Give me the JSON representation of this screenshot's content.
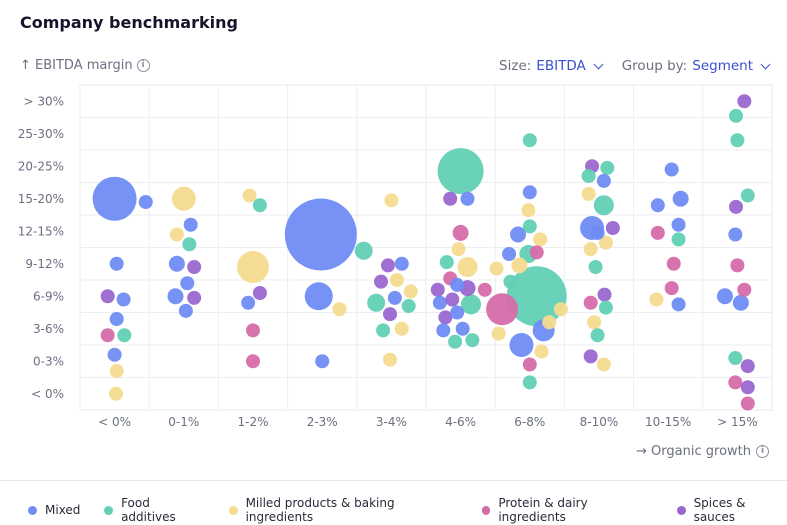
{
  "title": "Company benchmarking",
  "y_axis_label": "↑ EBITDA margin",
  "x_axis_label": "→ Organic growth",
  "info_glyph": "i",
  "size_control": {
    "label": "Size:",
    "value": "EBITDA"
  },
  "group_control": {
    "label": "Group by:",
    "value": "Segment"
  },
  "colors": {
    "Mixed": "#6f8cf3",
    "Food additives": "#62d0b5",
    "Milled products & baking ingredients": "#f5db8f",
    "Protein & dairy ingredients": "#d56ba9",
    "Spices & sauces": "#9a67cf"
  },
  "legend": [
    {
      "label": "Mixed",
      "color": "#6f8cf3"
    },
    {
      "label": "Food additives",
      "color": "#62d0b5"
    },
    {
      "label": "Milled products & baking ingredients",
      "color": "#f5db8f"
    },
    {
      "label": "Protein & dairy ingredients",
      "color": "#d56ba9"
    },
    {
      "label": "Spices & sauces",
      "color": "#9a67cf"
    }
  ],
  "chart_data": {
    "type": "scatter",
    "title": "Company benchmarking",
    "xlabel": "Organic growth",
    "ylabel": "EBITDA margin",
    "size_by": "EBITDA",
    "group_by": "Segment",
    "x_categories": [
      "< 0%",
      "0-1%",
      "1-2%",
      "2-3%",
      "3-4%",
      "4-6%",
      "6-8%",
      "8-10%",
      "10-15%",
      "> 15%"
    ],
    "y_categories": [
      "< 0%",
      "0-3%",
      "3-6%",
      "6-9%",
      "9-12%",
      "12-15%",
      "15-20%",
      "20-25%",
      "25-30%",
      "> 30%"
    ],
    "points": [
      {
        "x": 0.0,
        "y": 6.0,
        "size": 22,
        "group": "Mixed"
      },
      {
        "x": 0.45,
        "y": 5.9,
        "size": 7,
        "group": "Mixed"
      },
      {
        "x": 0.03,
        "y": 4.0,
        "size": 7,
        "group": "Mixed"
      },
      {
        "x": 0.13,
        "y": 2.9,
        "size": 7,
        "group": "Mixed"
      },
      {
        "x": -0.1,
        "y": 3.0,
        "size": 7,
        "group": "Spices & sauces"
      },
      {
        "x": 0.03,
        "y": 2.3,
        "size": 7,
        "group": "Mixed"
      },
      {
        "x": -0.1,
        "y": 1.8,
        "size": 7,
        "group": "Protein & dairy ingredients"
      },
      {
        "x": 0.14,
        "y": 1.8,
        "size": 7,
        "group": "Food additives"
      },
      {
        "x": 0.0,
        "y": 1.2,
        "size": 7,
        "group": "Mixed"
      },
      {
        "x": 0.03,
        "y": 0.7,
        "size": 7,
        "group": "Milled products & baking ingredients"
      },
      {
        "x": 0.02,
        "y": 0.0,
        "size": 7,
        "group": "Milled products & baking ingredients"
      },
      {
        "x": 1.0,
        "y": 6.0,
        "size": 12,
        "group": "Milled products & baking ingredients"
      },
      {
        "x": 1.1,
        "y": 5.2,
        "size": 7,
        "group": "Mixed"
      },
      {
        "x": 0.9,
        "y": 4.9,
        "size": 7,
        "group": "Milled products & baking ingredients"
      },
      {
        "x": 1.08,
        "y": 4.6,
        "size": 7,
        "group": "Food additives"
      },
      {
        "x": 0.9,
        "y": 4.0,
        "size": 8,
        "group": "Mixed"
      },
      {
        "x": 1.15,
        "y": 3.9,
        "size": 7,
        "group": "Spices & sauces"
      },
      {
        "x": 1.05,
        "y": 3.4,
        "size": 7,
        "group": "Mixed"
      },
      {
        "x": 0.88,
        "y": 3.0,
        "size": 8,
        "group": "Mixed"
      },
      {
        "x": 1.15,
        "y": 2.95,
        "size": 7,
        "group": "Spices & sauces"
      },
      {
        "x": 1.03,
        "y": 2.55,
        "size": 7,
        "group": "Mixed"
      },
      {
        "x": 1.95,
        "y": 6.1,
        "size": 7,
        "group": "Milled products & baking ingredients"
      },
      {
        "x": 2.1,
        "y": 5.8,
        "size": 7,
        "group": "Food additives"
      },
      {
        "x": 2.0,
        "y": 3.9,
        "size": 16,
        "group": "Milled products & baking ingredients"
      },
      {
        "x": 2.1,
        "y": 3.1,
        "size": 7,
        "group": "Spices & sauces"
      },
      {
        "x": 1.93,
        "y": 2.8,
        "size": 7,
        "group": "Mixed"
      },
      {
        "x": 2.0,
        "y": 1.95,
        "size": 7,
        "group": "Protein & dairy ingredients"
      },
      {
        "x": 2.0,
        "y": 1.0,
        "size": 7,
        "group": "Protein & dairy ingredients"
      },
      {
        "x": 2.98,
        "y": 4.9,
        "size": 36,
        "group": "Mixed"
      },
      {
        "x": 3.6,
        "y": 4.4,
        "size": 9,
        "group": "Food additives"
      },
      {
        "x": 2.95,
        "y": 3.0,
        "size": 14,
        "group": "Mixed"
      },
      {
        "x": 3.25,
        "y": 2.6,
        "size": 7,
        "group": "Milled products & baking ingredients"
      },
      {
        "x": 3.0,
        "y": 1.0,
        "size": 7,
        "group": "Mixed"
      },
      {
        "x": 4.0,
        "y": 5.95,
        "size": 7,
        "group": "Milled products & baking ingredients"
      },
      {
        "x": 3.95,
        "y": 3.95,
        "size": 7,
        "group": "Spices & sauces"
      },
      {
        "x": 4.15,
        "y": 4.0,
        "size": 7,
        "group": "Mixed"
      },
      {
        "x": 3.85,
        "y": 3.45,
        "size": 7,
        "group": "Spices & sauces"
      },
      {
        "x": 4.08,
        "y": 3.5,
        "size": 7,
        "group": "Milled products & baking ingredients"
      },
      {
        "x": 4.28,
        "y": 3.15,
        "size": 7,
        "group": "Milled products & baking ingredients"
      },
      {
        "x": 3.78,
        "y": 2.8,
        "size": 9,
        "group": "Food additives"
      },
      {
        "x": 4.05,
        "y": 2.95,
        "size": 7,
        "group": "Mixed"
      },
      {
        "x": 4.25,
        "y": 2.7,
        "size": 7,
        "group": "Food additives"
      },
      {
        "x": 3.98,
        "y": 2.45,
        "size": 7,
        "group": "Spices & sauces"
      },
      {
        "x": 3.88,
        "y": 1.95,
        "size": 7,
        "group": "Food additives"
      },
      {
        "x": 4.15,
        "y": 2.0,
        "size": 7,
        "group": "Milled products & baking ingredients"
      },
      {
        "x": 3.98,
        "y": 1.05,
        "size": 7,
        "group": "Milled products & baking ingredients"
      },
      {
        "x": 5.0,
        "y": 6.85,
        "size": 23,
        "group": "Food additives"
      },
      {
        "x": 4.85,
        "y": 6.0,
        "size": 7,
        "group": "Spices & sauces"
      },
      {
        "x": 5.1,
        "y": 6.0,
        "size": 7,
        "group": "Mixed"
      },
      {
        "x": 5.0,
        "y": 4.95,
        "size": 8,
        "group": "Protein & dairy ingredients"
      },
      {
        "x": 4.97,
        "y": 4.45,
        "size": 7,
        "group": "Milled products & baking ingredients"
      },
      {
        "x": 4.8,
        "y": 4.05,
        "size": 7,
        "group": "Food additives"
      },
      {
        "x": 5.1,
        "y": 3.9,
        "size": 10,
        "group": "Milled products & baking ingredients"
      },
      {
        "x": 4.85,
        "y": 3.55,
        "size": 7,
        "group": "Protein & dairy ingredients"
      },
      {
        "x": 4.67,
        "y": 3.2,
        "size": 7,
        "group": "Spices & sauces"
      },
      {
        "x": 4.95,
        "y": 3.35,
        "size": 7,
        "group": "Mixed"
      },
      {
        "x": 5.1,
        "y": 3.25,
        "size": 8,
        "group": "Spices & sauces"
      },
      {
        "x": 4.7,
        "y": 2.8,
        "size": 7,
        "group": "Mixed"
      },
      {
        "x": 4.88,
        "y": 2.9,
        "size": 7,
        "group": "Spices & sauces"
      },
      {
        "x": 5.15,
        "y": 2.75,
        "size": 10,
        "group": "Food additives"
      },
      {
        "x": 4.78,
        "y": 2.35,
        "size": 7,
        "group": "Spices & sauces"
      },
      {
        "x": 4.95,
        "y": 2.5,
        "size": 7,
        "group": "Mixed"
      },
      {
        "x": 4.75,
        "y": 1.95,
        "size": 7,
        "group": "Mixed"
      },
      {
        "x": 5.03,
        "y": 2.0,
        "size": 7,
        "group": "Mixed"
      },
      {
        "x": 4.92,
        "y": 1.6,
        "size": 7,
        "group": "Food additives"
      },
      {
        "x": 5.17,
        "y": 1.65,
        "size": 7,
        "group": "Food additives"
      },
      {
        "x": 5.35,
        "y": 3.2,
        "size": 7,
        "group": "Protein & dairy ingredients"
      },
      {
        "x": 5.52,
        "y": 3.85,
        "size": 7,
        "group": "Milled products & baking ingredients"
      },
      {
        "x": 5.6,
        "y": 2.6,
        "size": 16,
        "group": "Protein & dairy ingredients"
      },
      {
        "x": 5.72,
        "y": 3.45,
        "size": 7,
        "group": "Food additives"
      },
      {
        "x": 5.55,
        "y": 1.85,
        "size": 7,
        "group": "Milled products & baking ingredients"
      },
      {
        "x": 5.83,
        "y": 4.9,
        "size": 8,
        "group": "Mixed"
      },
      {
        "x": 5.7,
        "y": 4.3,
        "size": 7,
        "group": "Mixed"
      },
      {
        "x": 5.85,
        "y": 3.95,
        "size": 8,
        "group": "Milled products & baking ingredients"
      },
      {
        "x": 5.88,
        "y": 1.5,
        "size": 12,
        "group": "Mixed"
      },
      {
        "x": 6.0,
        "y": 7.8,
        "size": 7,
        "group": "Food additives"
      },
      {
        "x": 6.0,
        "y": 6.2,
        "size": 7,
        "group": "Mixed"
      },
      {
        "x": 5.98,
        "y": 5.65,
        "size": 7,
        "group": "Milled products & baking ingredients"
      },
      {
        "x": 6.0,
        "y": 5.15,
        "size": 7,
        "group": "Food additives"
      },
      {
        "x": 6.15,
        "y": 4.75,
        "size": 7,
        "group": "Milled products & baking ingredients"
      },
      {
        "x": 6.1,
        "y": 4.35,
        "size": 7,
        "group": "Protein & dairy ingredients"
      },
      {
        "x": 5.98,
        "y": 4.3,
        "size": 9,
        "group": "Food additives"
      },
      {
        "x": 6.1,
        "y": 3.0,
        "size": 30,
        "group": "Food additives"
      },
      {
        "x": 6.2,
        "y": 1.95,
        "size": 11,
        "group": "Mixed"
      },
      {
        "x": 6.17,
        "y": 1.3,
        "size": 7,
        "group": "Milled products & baking ingredients"
      },
      {
        "x": 6.0,
        "y": 0.9,
        "size": 7,
        "group": "Protein & dairy ingredients"
      },
      {
        "x": 6.0,
        "y": 0.35,
        "size": 7,
        "group": "Food additives"
      },
      {
        "x": 6.45,
        "y": 2.6,
        "size": 7,
        "group": "Milled products & baking ingredients"
      },
      {
        "x": 6.28,
        "y": 2.2,
        "size": 7,
        "group": "Milled products & baking ingredients"
      },
      {
        "x": 6.9,
        "y": 7.0,
        "size": 7,
        "group": "Spices & sauces"
      },
      {
        "x": 7.12,
        "y": 6.95,
        "size": 7,
        "group": "Food additives"
      },
      {
        "x": 6.85,
        "y": 6.7,
        "size": 7,
        "group": "Food additives"
      },
      {
        "x": 7.07,
        "y": 6.55,
        "size": 7,
        "group": "Mixed"
      },
      {
        "x": 6.85,
        "y": 6.15,
        "size": 7,
        "group": "Milled products & baking ingredients"
      },
      {
        "x": 7.07,
        "y": 5.8,
        "size": 10,
        "group": "Food additives"
      },
      {
        "x": 6.9,
        "y": 5.1,
        "size": 12,
        "group": "Mixed"
      },
      {
        "x": 7.2,
        "y": 5.1,
        "size": 7,
        "group": "Spices & sauces"
      },
      {
        "x": 6.88,
        "y": 4.45,
        "size": 7,
        "group": "Milled products & baking ingredients"
      },
      {
        "x": 7.1,
        "y": 4.65,
        "size": 7,
        "group": "Milled products & baking ingredients"
      },
      {
        "x": 6.98,
        "y": 4.95,
        "size": 7,
        "group": "Mixed"
      },
      {
        "x": 6.95,
        "y": 3.9,
        "size": 7,
        "group": "Food additives"
      },
      {
        "x": 7.08,
        "y": 3.05,
        "size": 7,
        "group": "Spices & sauces"
      },
      {
        "x": 6.88,
        "y": 2.8,
        "size": 7,
        "group": "Protein & dairy ingredients"
      },
      {
        "x": 7.1,
        "y": 2.65,
        "size": 7,
        "group": "Food additives"
      },
      {
        "x": 6.93,
        "y": 2.2,
        "size": 7,
        "group": "Milled products & baking ingredients"
      },
      {
        "x": 6.98,
        "y": 1.8,
        "size": 7,
        "group": "Food additives"
      },
      {
        "x": 6.88,
        "y": 1.15,
        "size": 7,
        "group": "Spices & sauces"
      },
      {
        "x": 7.07,
        "y": 0.9,
        "size": 7,
        "group": "Milled products & baking ingredients"
      },
      {
        "x": 8.05,
        "y": 6.9,
        "size": 7,
        "group": "Mixed"
      },
      {
        "x": 8.18,
        "y": 6.0,
        "size": 8,
        "group": "Mixed"
      },
      {
        "x": 7.85,
        "y": 5.8,
        "size": 7,
        "group": "Mixed"
      },
      {
        "x": 8.15,
        "y": 5.2,
        "size": 7,
        "group": "Mixed"
      },
      {
        "x": 7.85,
        "y": 4.95,
        "size": 7,
        "group": "Protein & dairy ingredients"
      },
      {
        "x": 8.15,
        "y": 4.75,
        "size": 7,
        "group": "Food additives"
      },
      {
        "x": 8.08,
        "y": 4.0,
        "size": 7,
        "group": "Protein & dairy ingredients"
      },
      {
        "x": 8.05,
        "y": 3.25,
        "size": 7,
        "group": "Protein & dairy ingredients"
      },
      {
        "x": 7.83,
        "y": 2.9,
        "size": 7,
        "group": "Milled products & baking ingredients"
      },
      {
        "x": 8.15,
        "y": 2.75,
        "size": 7,
        "group": "Mixed"
      },
      {
        "x": 9.1,
        "y": 9.0,
        "size": 7,
        "group": "Spices & sauces"
      },
      {
        "x": 8.98,
        "y": 8.55,
        "size": 7,
        "group": "Food additives"
      },
      {
        "x": 9.0,
        "y": 7.8,
        "size": 7,
        "group": "Food additives"
      },
      {
        "x": 9.15,
        "y": 6.1,
        "size": 7,
        "group": "Food additives"
      },
      {
        "x": 8.98,
        "y": 5.75,
        "size": 7,
        "group": "Spices & sauces"
      },
      {
        "x": 8.97,
        "y": 4.9,
        "size": 7,
        "group": "Mixed"
      },
      {
        "x": 9.0,
        "y": 3.95,
        "size": 7,
        "group": "Protein & dairy ingredients"
      },
      {
        "x": 9.1,
        "y": 3.2,
        "size": 7,
        "group": "Protein & dairy ingredients"
      },
      {
        "x": 8.82,
        "y": 3.0,
        "size": 8,
        "group": "Mixed"
      },
      {
        "x": 9.05,
        "y": 2.8,
        "size": 8,
        "group": "Mixed"
      },
      {
        "x": 8.97,
        "y": 1.1,
        "size": 7,
        "group": "Food additives"
      },
      {
        "x": 9.15,
        "y": 0.85,
        "size": 7,
        "group": "Spices & sauces"
      },
      {
        "x": 8.97,
        "y": 0.35,
        "size": 7,
        "group": "Protein & dairy ingredients"
      },
      {
        "x": 9.15,
        "y": 0.2,
        "size": 7,
        "group": "Spices & sauces"
      },
      {
        "x": 9.15,
        "y": -0.3,
        "size": 7,
        "group": "Protein & dairy ingredients"
      }
    ]
  }
}
